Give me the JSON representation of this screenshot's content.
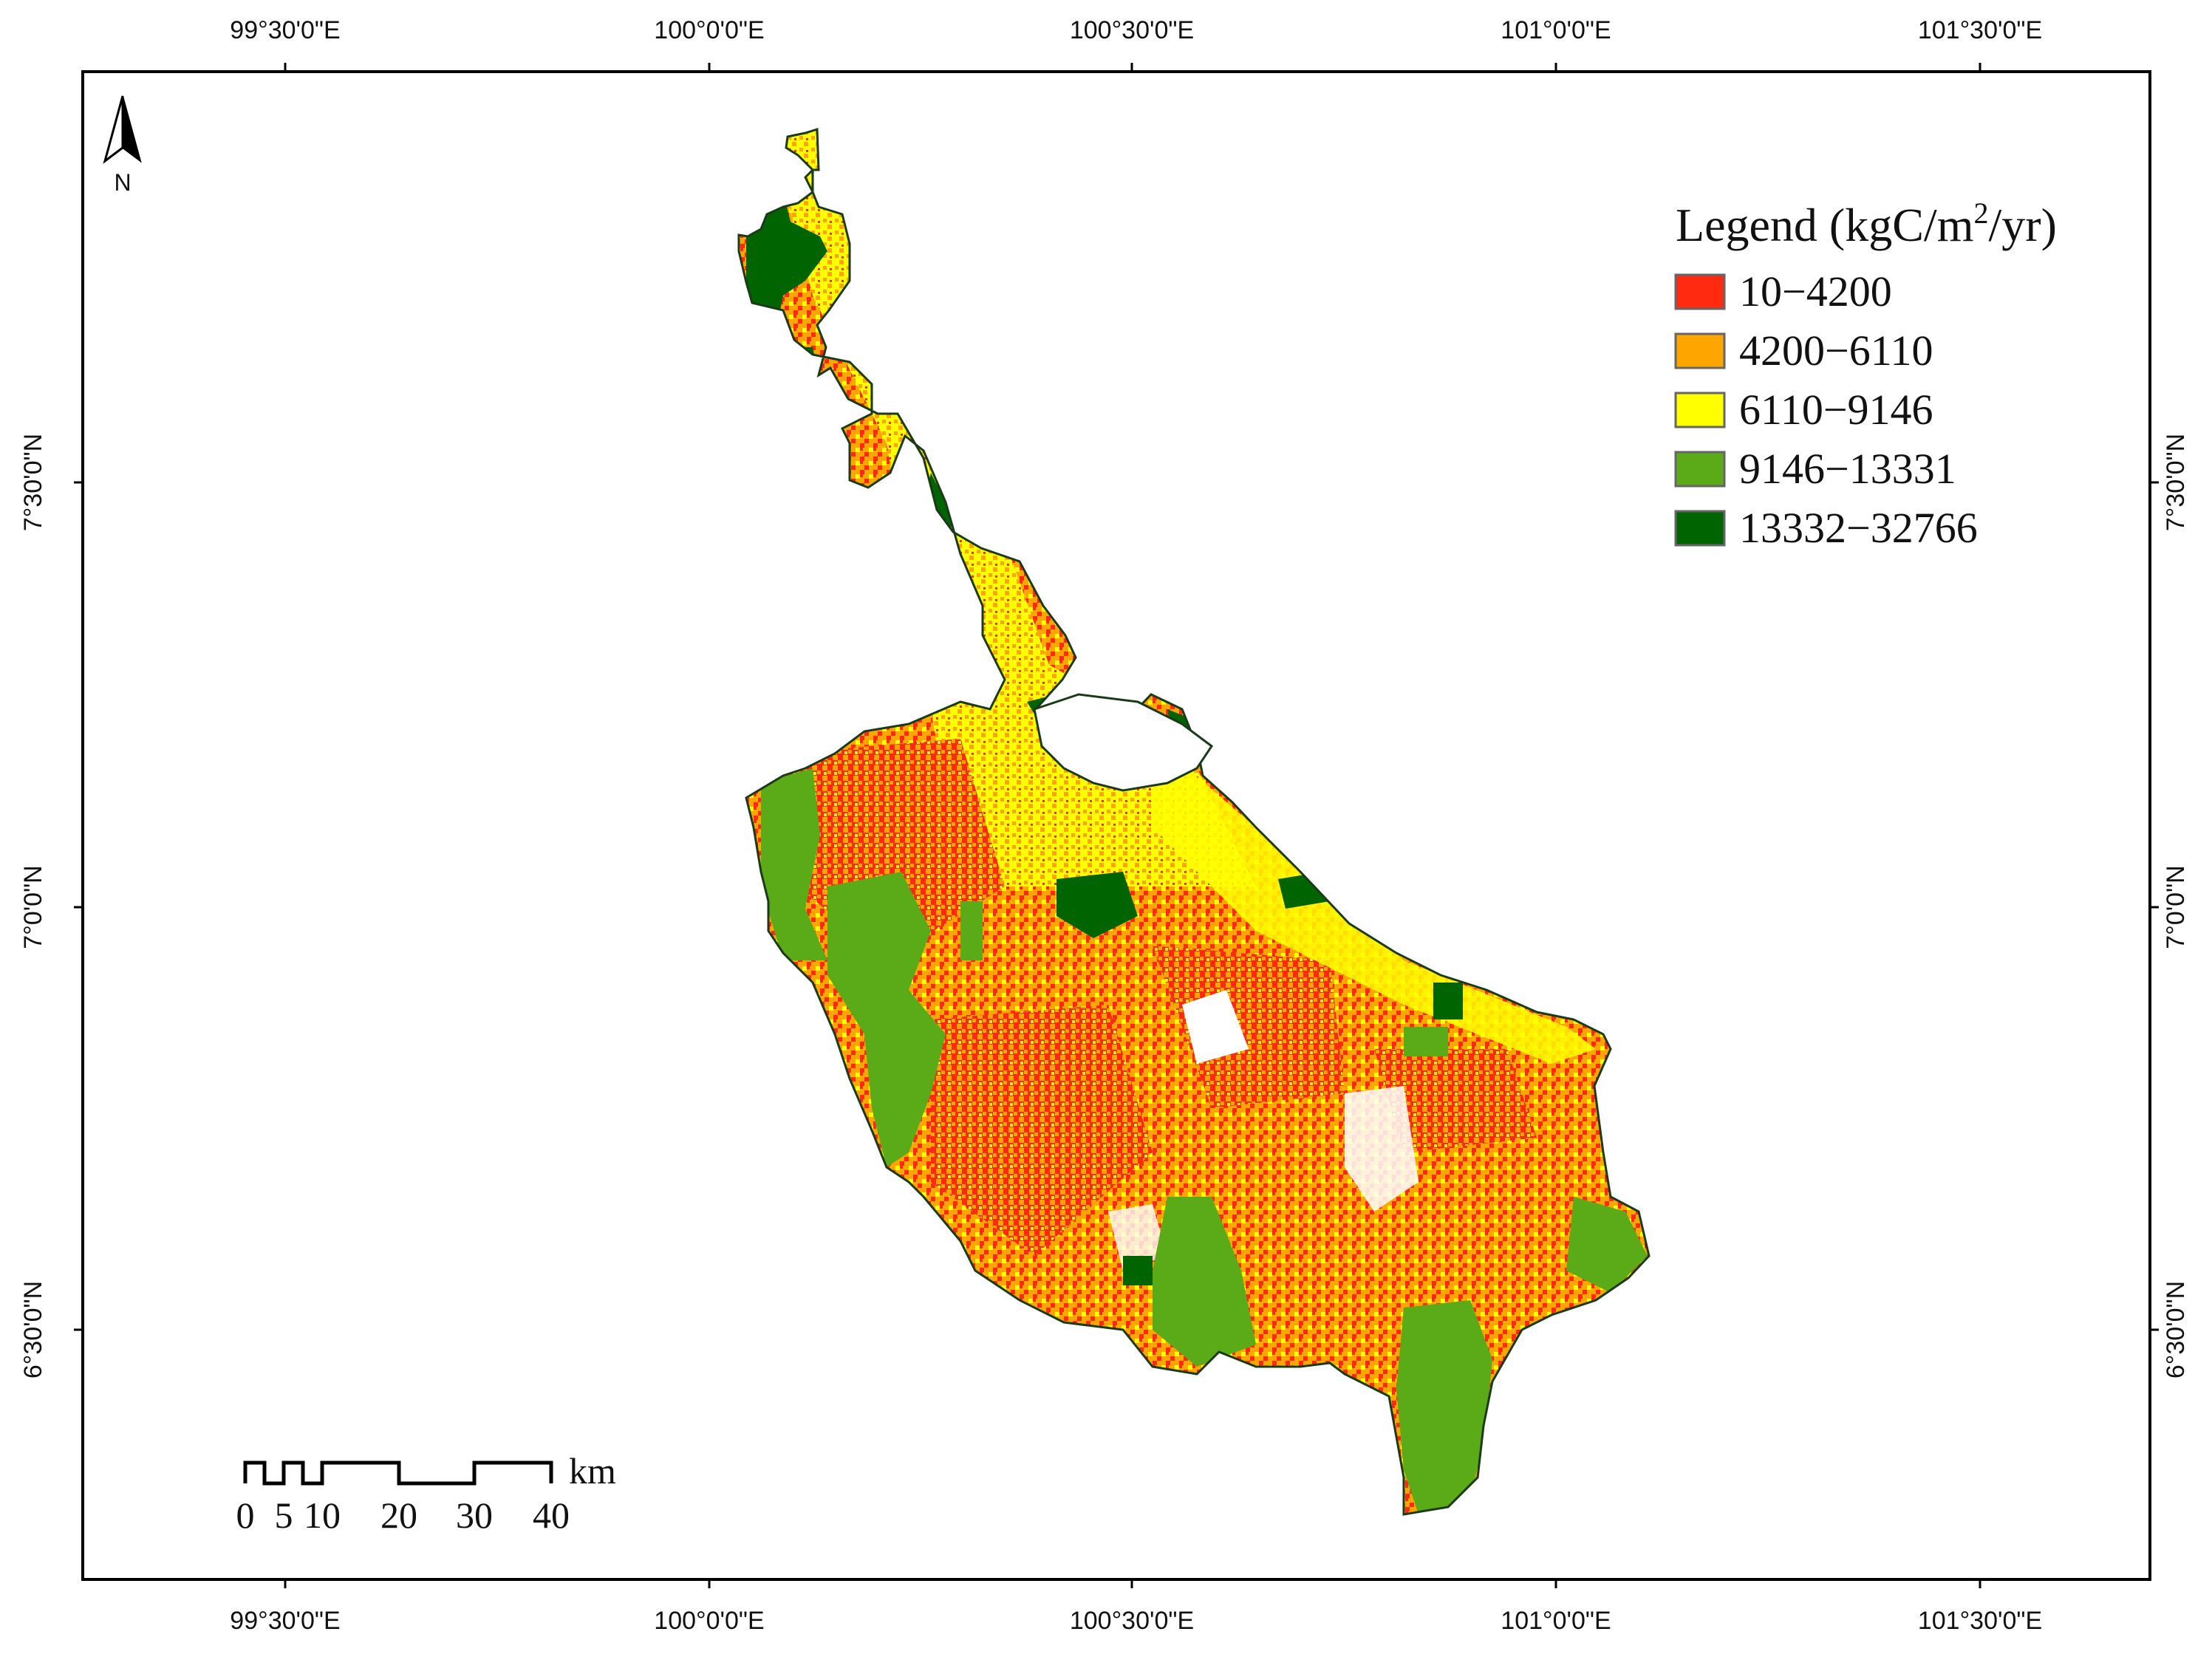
{
  "map": {
    "frame_color": "#000000",
    "background": "#ffffff",
    "graticule": {
      "longitude_labels": [
        "99°30'0\"E",
        "100°0'0\"E",
        "100°30'0\"E",
        "101°0'0\"E",
        "101°30'0\"E"
      ],
      "latitude_labels": [
        "7°30'0\"N",
        "7°0'0\"N",
        "6°30'0\"N"
      ]
    },
    "north_arrow": {
      "label": "N"
    },
    "legend": {
      "title_prefix": "Legend (kgC/m",
      "title_sup": "2",
      "title_suffix": "/yr)",
      "classes": [
        {
          "label": "10−4200",
          "color": "#ff2a10"
        },
        {
          "label": "4200−6110",
          "color": "#ffa500"
        },
        {
          "label": "6110−9146",
          "color": "#ffff00"
        },
        {
          "label": "9146−13331",
          "color": "#5aab17"
        },
        {
          "label": "13332−32766",
          "color": "#006400"
        }
      ]
    },
    "scale_bar": {
      "unit": "km",
      "labels": [
        "0",
        "5",
        "10",
        "20",
        "30",
        "40"
      ]
    }
  }
}
